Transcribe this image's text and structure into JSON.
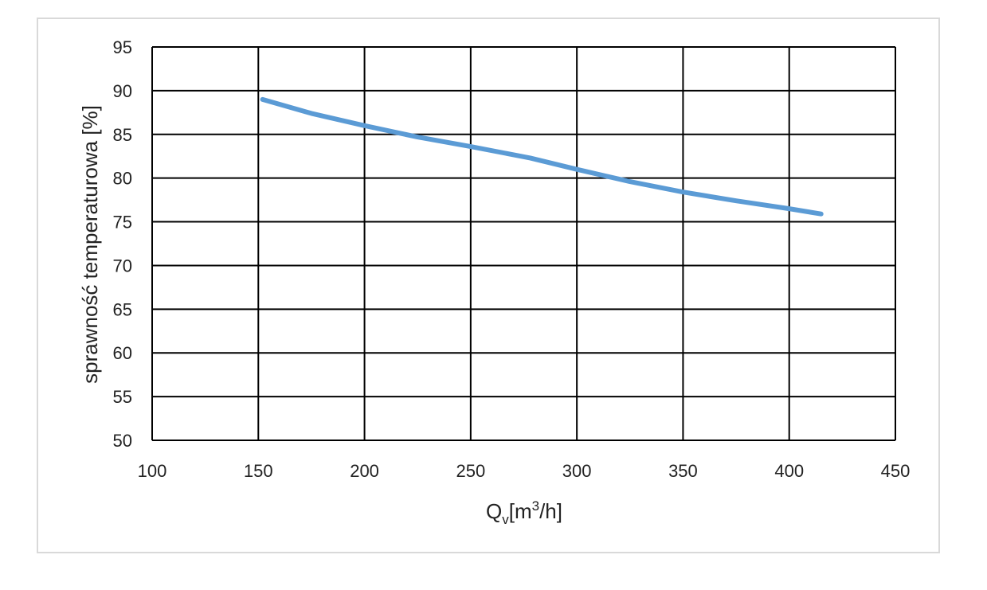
{
  "chart_data": {
    "type": "line",
    "title": "",
    "xlabel": {
      "main": "Q",
      "subscript": "v",
      "unit_open": "[m",
      "superscript": "3",
      "unit_close": "/h]"
    },
    "ylabel": "sprawność temperaturowa [%]",
    "xlim": [
      100,
      450
    ],
    "ylim": [
      50,
      95
    ],
    "x_ticks": [
      100,
      150,
      200,
      250,
      300,
      350,
      400,
      450
    ],
    "y_ticks": [
      50,
      55,
      60,
      65,
      70,
      75,
      80,
      85,
      90,
      95
    ],
    "grid": true,
    "legend": "none",
    "series": [
      {
        "color": "#5b9bd5",
        "x": [
          152,
          175,
          200,
          225,
          250,
          278,
          300,
          325,
          350,
          375,
          400,
          415
        ],
        "y": [
          89.0,
          87.4,
          86.0,
          84.7,
          83.6,
          82.3,
          81.0,
          79.6,
          78.4,
          77.4,
          76.5,
          75.9
        ]
      }
    ]
  }
}
